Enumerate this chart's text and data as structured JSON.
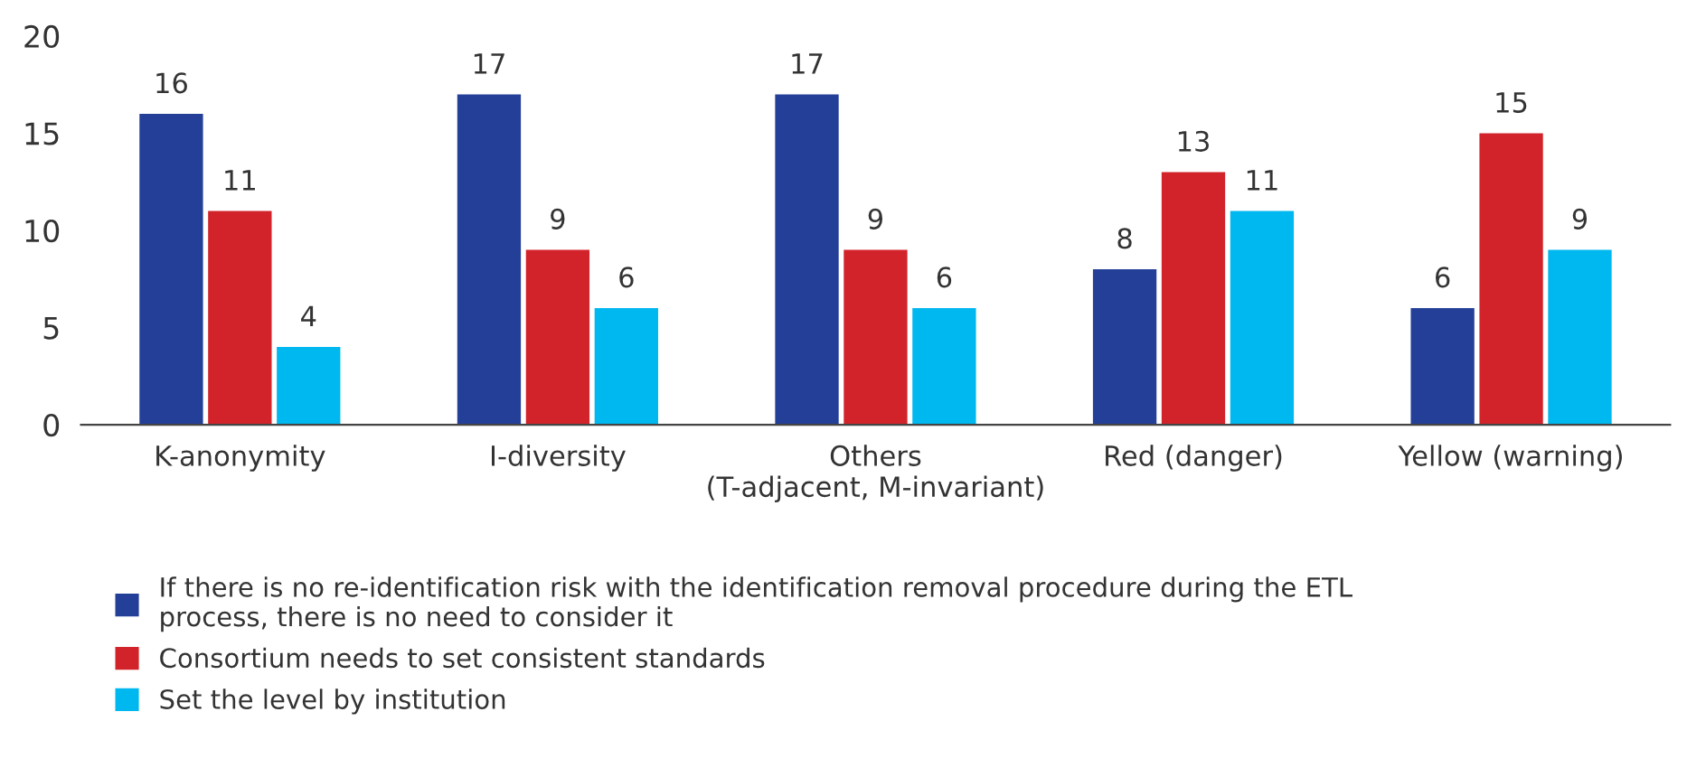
{
  "chart_data": {
    "type": "bar",
    "categories": [
      "K-anonymity",
      "I-diversity",
      "Others\n(T-adjacent, M-invariant)",
      "Red (danger)",
      "Yellow (warning)"
    ],
    "series": [
      {
        "name": "If there is no re-identification risk with the identification removal procedure during the ETL process, there is no need to consider it",
        "color": "#233f98",
        "values": [
          16,
          17,
          17,
          8,
          6
        ]
      },
      {
        "name": "Consortium needs to set consistent standards",
        "color": "#d2232a",
        "values": [
          11,
          9,
          9,
          13,
          15
        ]
      },
      {
        "name": "Set the level by institution",
        "color": "#00b8f0",
        "values": [
          4,
          6,
          6,
          11,
          9
        ]
      }
    ],
    "ylim": [
      0,
      20
    ],
    "yticks": [
      0,
      5,
      10,
      15,
      20
    ],
    "grid": false,
    "legend": "bottom",
    "data_labels": true
  }
}
